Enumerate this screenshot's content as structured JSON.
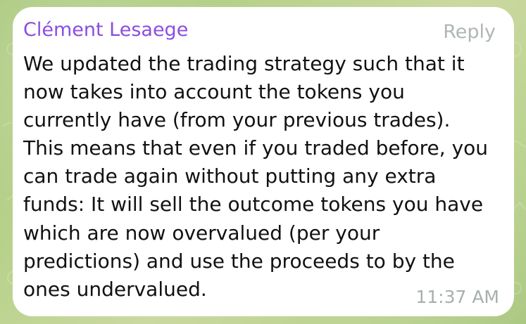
{
  "message": {
    "sender": "Clément Lesaege",
    "reply_label": "Reply",
    "text": "We updated the trading strategy such that it now takes into account the tokens you currently have (from your previous trades). This means that even if you traded before, you can trade again without putting any extra funds: It will sell the outcome tokens you have which are now overvalued (per your predictions) and use the proceeds to by the ones undervalued.",
    "time": "11:37 AM"
  },
  "colors": {
    "sender_name": "#8b4de0",
    "reply_link": "#b0b7b0",
    "message_text": "#111111",
    "timestamp": "#a6b0aa",
    "bubble_bg": "#ffffff"
  }
}
